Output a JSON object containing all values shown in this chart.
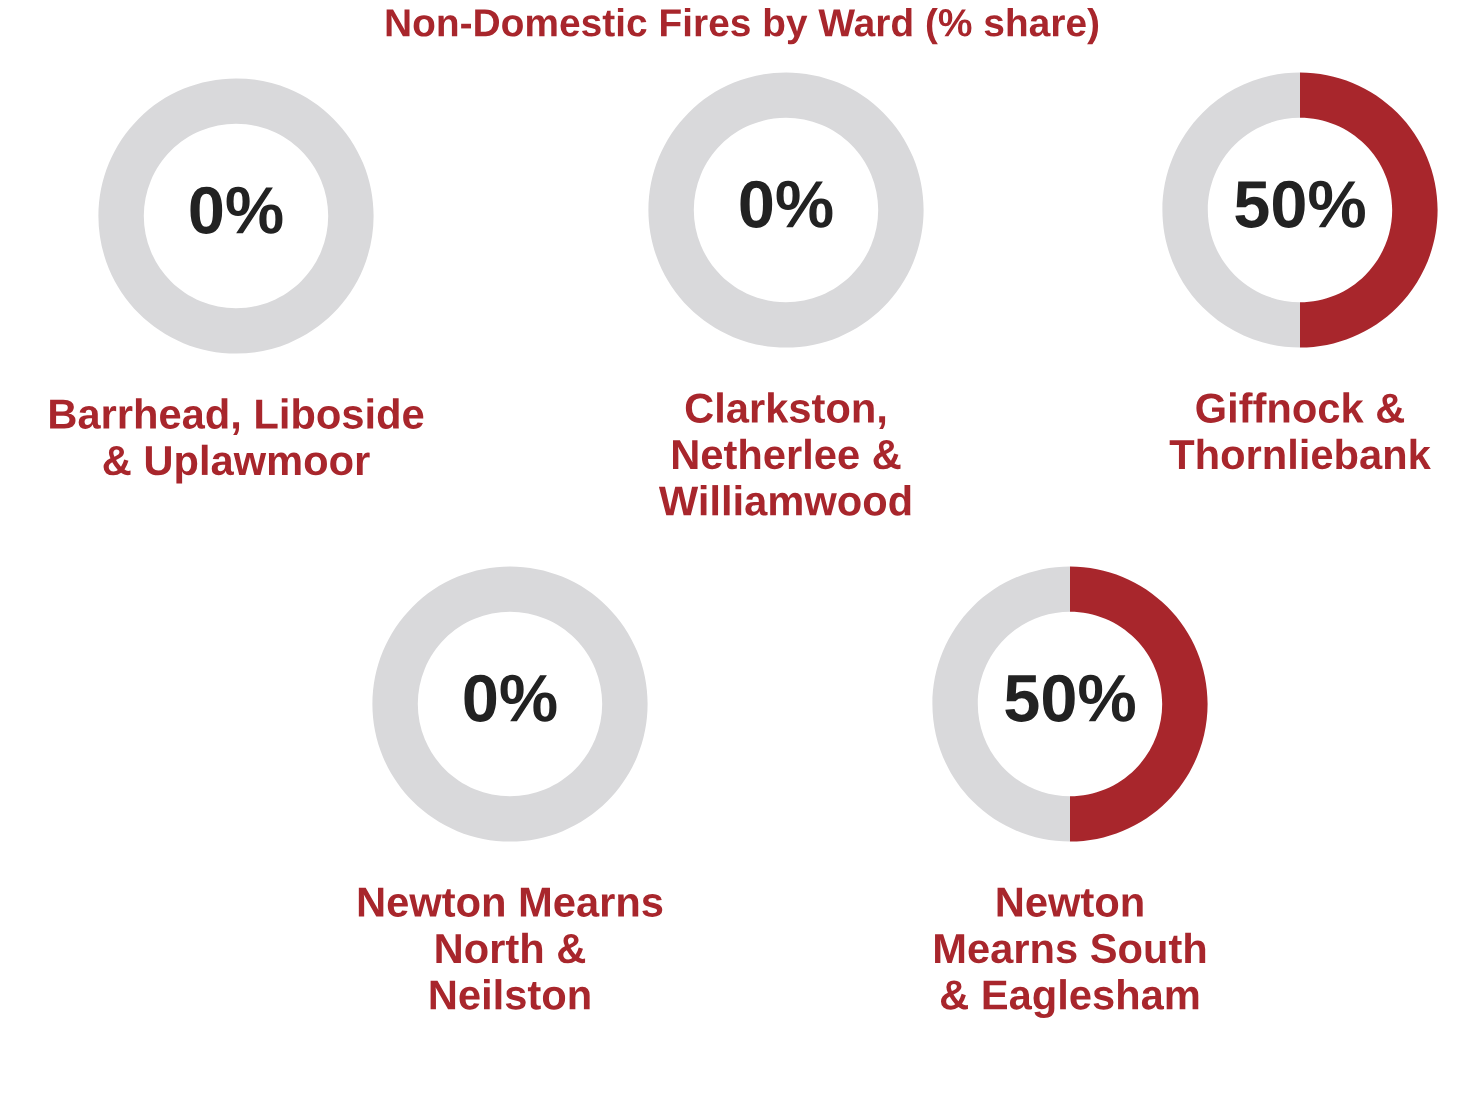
{
  "chart_data": [
    {
      "type": "other",
      "title": "Non-Domestic Fires by Ward (% share)"
    },
    {
      "type": "donut",
      "title": "Barrhead, Liboside\n& Uplawmoor",
      "categories": [
        null,
        null
      ],
      "values": [
        0,
        100
      ],
      "colors": [
        "#a8262c",
        "#d9d9db"
      ],
      "value_labels": [
        "0%",
        null
      ]
    },
    {
      "type": "donut",
      "title": "Clarkston,\nNetherlee &\nWilliamwood",
      "categories": [
        null,
        null
      ],
      "values": [
        0,
        100
      ],
      "colors": [
        "#a8262c",
        "#d9d9db"
      ],
      "value_labels": [
        "0%",
        null
      ]
    },
    {
      "type": "donut",
      "title": "Giffnock &\nThornliebank",
      "categories": [
        null,
        null
      ],
      "values": [
        50,
        50
      ],
      "colors": [
        "#a8262c",
        "#d9d9db"
      ],
      "value_labels": [
        "50%",
        null
      ]
    },
    {
      "type": "donut",
      "title": "Newton Mearns\nNorth &\nNeilston",
      "categories": [
        null,
        null
      ],
      "values": [
        0,
        100
      ],
      "colors": [
        "#a8262c",
        "#d9d9db"
      ],
      "value_labels": [
        "0%",
        null
      ]
    },
    {
      "type": "donut",
      "title": "Newton\nMearns South\n& Eaglesham",
      "categories": [
        null,
        null
      ],
      "values": [
        50,
        50
      ],
      "colors": [
        "#a8262c",
        "#d9d9db"
      ],
      "value_labels": [
        "50%",
        null
      ]
    }
  ]
}
